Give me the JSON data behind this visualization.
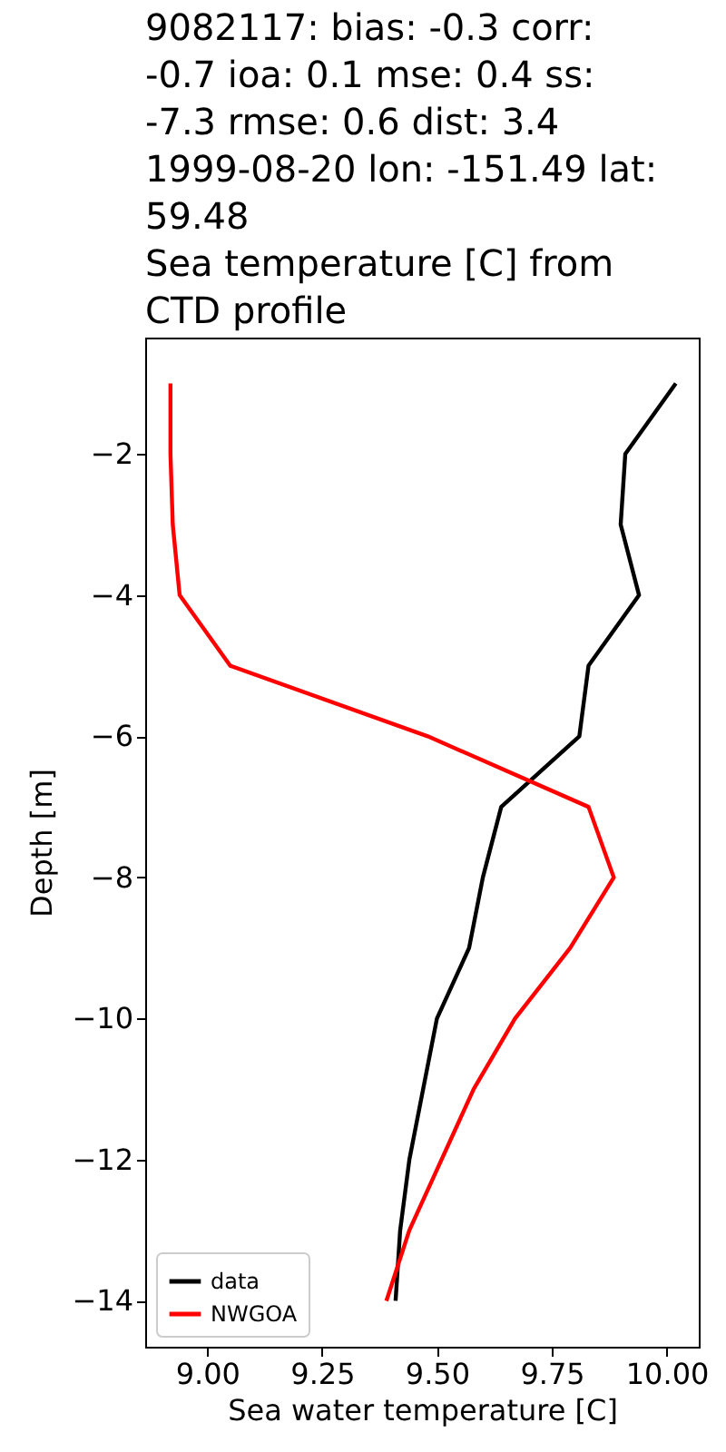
{
  "chart_data": {
    "type": "line",
    "title": "9082117: bias: -0.3  corr:\n-0.7  ioa: 0.1  mse: 0.4  ss:\n-7.3  rmse: 0.6  dist: 3.4\n1999-08-20 lon: -151.49 lat:\n59.48\nSea temperature [C] from\nCTD profile",
    "xlabel": "Sea water temperature [C]",
    "ylabel": "Depth [m]",
    "series": [
      {
        "name": "data",
        "color": "#000000",
        "x": [
          10.02,
          9.91,
          9.9,
          9.94,
          9.83,
          9.81,
          9.64,
          9.6,
          9.57,
          9.5,
          9.47,
          9.44,
          9.42,
          9.41
        ],
        "values": [
          -1,
          -2,
          -3,
          -4,
          -5,
          -6,
          -7,
          -8,
          -9,
          -10,
          -11,
          -12,
          -13,
          -14
        ]
      },
      {
        "name": "NWGOA",
        "color": "#ff0000",
        "x": [
          8.92,
          8.92,
          8.925,
          8.94,
          9.05,
          9.48,
          9.83,
          9.885,
          9.79,
          9.67,
          9.58,
          9.51,
          9.44,
          9.39
        ],
        "values": [
          -1,
          -2,
          -3,
          -4,
          -5,
          -6,
          -7,
          -8,
          -9,
          -10,
          -11,
          -12,
          -13,
          -14
        ]
      }
    ],
    "xlim": [
      8.865,
      10.07
    ],
    "ylim": [
      -14.65,
      -0.35
    ],
    "xticks": [
      {
        "value": 9,
        "label": "9.00"
      },
      {
        "value": 9.25,
        "label": "9.25"
      },
      {
        "value": 9.5,
        "label": "9.50"
      },
      {
        "value": 9.75,
        "label": "9.75"
      },
      {
        "value": 10,
        "label": "10.00"
      }
    ],
    "yticks": [
      -14,
      -12,
      -10,
      -8,
      -6,
      -4,
      -2
    ],
    "grid": false,
    "legend": "bottom left",
    "line_style": "solid"
  }
}
